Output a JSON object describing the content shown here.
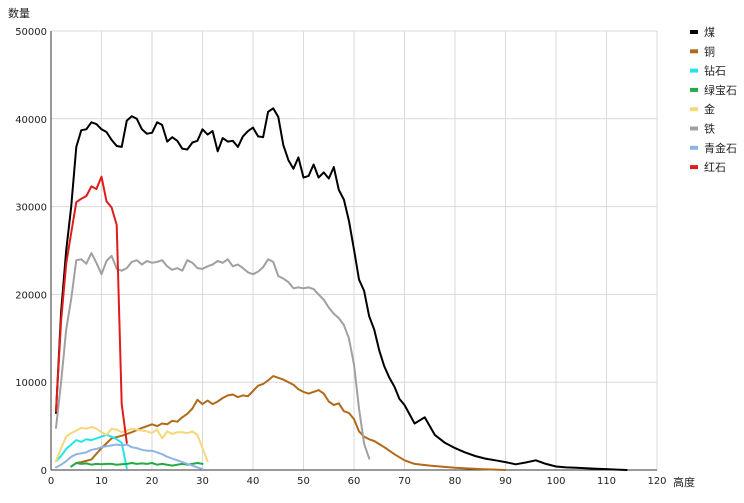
{
  "chart_data": {
    "type": "line",
    "title": "",
    "xlabel": "高度",
    "ylabel": "数量",
    "xlim": [
      0,
      120
    ],
    "ylim": [
      0,
      50000
    ],
    "x_ticks": [
      0,
      10,
      20,
      30,
      40,
      50,
      60,
      70,
      80,
      90,
      100,
      110,
      120
    ],
    "y_ticks": [
      0,
      10000,
      20000,
      30000,
      40000,
      50000
    ],
    "grid": true,
    "legend_position": "right",
    "series": [
      {
        "name": "煤",
        "color": "#000000",
        "x": [
          1,
          2,
          3,
          4,
          5,
          6,
          7,
          8,
          9,
          10,
          11,
          12,
          13,
          14,
          15,
          16,
          17,
          18,
          19,
          20,
          21,
          22,
          23,
          24,
          25,
          26,
          27,
          28,
          29,
          30,
          31,
          32,
          33,
          34,
          35,
          36,
          37,
          38,
          39,
          40,
          41,
          42,
          43,
          44,
          45,
          46,
          47,
          48,
          49,
          50,
          51,
          52,
          53,
          54,
          55,
          56,
          57,
          58,
          59,
          60,
          61,
          62,
          63,
          64,
          65,
          66,
          67,
          68,
          69,
          70,
          72,
          74,
          76,
          78,
          80,
          82,
          84,
          86,
          88,
          90,
          92,
          94,
          96,
          98,
          100,
          102,
          104,
          106,
          108,
          110,
          112,
          114
        ],
        "y": [
          6500,
          18000,
          25000,
          30000,
          36800,
          38700,
          38800,
          39600,
          39400,
          38800,
          38500,
          37600,
          36900,
          36800,
          39800,
          40300,
          40000,
          38800,
          38300,
          38400,
          39600,
          39300,
          37400,
          37900,
          37500,
          36600,
          36500,
          37300,
          37500,
          38800,
          38200,
          38600,
          36300,
          37800,
          37400,
          37500,
          36800,
          38000,
          38600,
          39000,
          38000,
          37900,
          40800,
          41200,
          40200,
          37000,
          35300,
          34300,
          35600,
          33300,
          33500,
          34800,
          33300,
          33900,
          33200,
          34500,
          31900,
          30800,
          28400,
          25100,
          21700,
          20400,
          17500,
          16000,
          13600,
          11800,
          10500,
          9500,
          8100,
          7400,
          5300,
          6000,
          4000,
          3100,
          2500,
          2000,
          1600,
          1300,
          1100,
          900,
          650,
          850,
          1100,
          700,
          400,
          300,
          250,
          200,
          150,
          100,
          50,
          0
        ]
      },
      {
        "name": "铜",
        "color": "#b06a1a",
        "x": [
          5,
          6,
          8,
          10,
          12,
          14,
          16,
          18,
          20,
          21,
          22,
          23,
          24,
          25,
          26,
          27,
          28,
          29,
          30,
          31,
          32,
          33,
          34,
          35,
          36,
          37,
          38,
          39,
          40,
          41,
          42,
          43,
          44,
          45,
          46,
          47,
          48,
          49,
          50,
          51,
          52,
          53,
          54,
          55,
          56,
          57,
          58,
          59,
          60,
          61,
          62,
          63,
          64,
          66,
          68,
          70,
          72,
          75,
          80,
          85,
          90
        ],
        "y": [
          800,
          900,
          1200,
          2500,
          3600,
          3900,
          4300,
          4800,
          5200,
          5000,
          5300,
          5200,
          5600,
          5500,
          6000,
          6400,
          7000,
          8000,
          7500,
          7900,
          7500,
          7800,
          8200,
          8500,
          8600,
          8300,
          8500,
          8400,
          9000,
          9600,
          9800,
          10200,
          10700,
          10500,
          10300,
          10000,
          9700,
          9200,
          8900,
          8700,
          8900,
          9100,
          8700,
          7800,
          7400,
          7600,
          6700,
          6500,
          5800,
          4400,
          3800,
          3500,
          3300,
          2600,
          1800,
          1100,
          700,
          500,
          250,
          100,
          0
        ]
      },
      {
        "name": "钻石",
        "color": "#22e6e6",
        "x": [
          1,
          2,
          3,
          4,
          5,
          6,
          7,
          8,
          9,
          10,
          11,
          12,
          13,
          14,
          15
        ],
        "y": [
          1000,
          1600,
          2400,
          2900,
          3400,
          3200,
          3500,
          3400,
          3600,
          3800,
          4000,
          3800,
          3500,
          3100,
          200
        ]
      },
      {
        "name": "绿宝石",
        "color": "#22aa44",
        "x": [
          4,
          5,
          6,
          7,
          8,
          9,
          10,
          11,
          12,
          13,
          14,
          15,
          16,
          17,
          18,
          19,
          20,
          21,
          22,
          23,
          24,
          25,
          26,
          27,
          28,
          29,
          30
        ],
        "y": [
          400,
          800,
          700,
          750,
          600,
          700,
          650,
          700,
          700,
          600,
          650,
          700,
          800,
          700,
          750,
          700,
          800,
          600,
          700,
          600,
          500,
          600,
          700,
          600,
          700,
          800,
          700
        ]
      },
      {
        "name": "金",
        "color": "#f6d77a",
        "x": [
          1,
          2,
          3,
          4,
          5,
          6,
          7,
          8,
          9,
          10,
          11,
          12,
          13,
          14,
          15,
          16,
          17,
          18,
          19,
          20,
          21,
          22,
          23,
          24,
          25,
          26,
          27,
          28,
          29,
          30,
          31
        ],
        "y": [
          1000,
          2500,
          3800,
          4200,
          4500,
          4800,
          4700,
          4900,
          4700,
          4300,
          4000,
          4700,
          4600,
          4300,
          4500,
          4700,
          4600,
          4500,
          4400,
          4200,
          4600,
          3600,
          4400,
          4100,
          4300,
          4300,
          4200,
          4400,
          4000,
          2500,
          1000
        ]
      },
      {
        "name": "铁",
        "color": "#a0a0a0",
        "x": [
          1,
          2,
          3,
          4,
          5,
          6,
          7,
          8,
          9,
          10,
          11,
          12,
          13,
          14,
          15,
          16,
          17,
          18,
          19,
          20,
          21,
          22,
          23,
          24,
          25,
          26,
          27,
          28,
          29,
          30,
          31,
          32,
          33,
          34,
          35,
          36,
          37,
          38,
          39,
          40,
          41,
          42,
          43,
          44,
          45,
          46,
          47,
          48,
          49,
          50,
          51,
          52,
          53,
          54,
          55,
          56,
          57,
          58,
          59,
          60,
          61,
          62,
          63
        ],
        "y": [
          4800,
          10000,
          16000,
          19500,
          23900,
          24000,
          23500,
          24700,
          23600,
          22300,
          23800,
          24400,
          22900,
          22700,
          23000,
          23700,
          23900,
          23400,
          23800,
          23600,
          23700,
          23900,
          23200,
          22800,
          23000,
          22700,
          23900,
          23600,
          23000,
          22900,
          23200,
          23400,
          23800,
          23600,
          24000,
          23200,
          23400,
          23000,
          22500,
          22300,
          22600,
          23100,
          24000,
          23700,
          22100,
          21800,
          21400,
          20700,
          20800,
          20700,
          20800,
          20600,
          20000,
          19400,
          18500,
          17800,
          17300,
          16500,
          15000,
          12000,
          7000,
          3000,
          1300
        ]
      },
      {
        "name": "青金石",
        "color": "#8fb4e3",
        "x": [
          1,
          2,
          3,
          4,
          5,
          6,
          7,
          8,
          9,
          10,
          11,
          12,
          13,
          14,
          15,
          16,
          17,
          18,
          19,
          20,
          21,
          22,
          23,
          24,
          25,
          26,
          27,
          28,
          29,
          30
        ],
        "y": [
          300,
          600,
          1000,
          1500,
          1800,
          1900,
          2000,
          2300,
          2400,
          2600,
          2700,
          2800,
          2900,
          2800,
          2900,
          2600,
          2500,
          2300,
          2200,
          2200,
          2000,
          1800,
          1500,
          1300,
          1100,
          900,
          700,
          500,
          300,
          100
        ]
      },
      {
        "name": "红石",
        "color": "#e01b1b",
        "x": [
          1,
          2,
          3,
          4,
          5,
          6,
          7,
          8,
          9,
          10,
          11,
          12,
          13,
          14,
          15
        ],
        "y": [
          6700,
          17000,
          23500,
          27000,
          30500,
          30900,
          31200,
          32300,
          32000,
          33400,
          30600,
          29900,
          27900,
          7500,
          3100
        ]
      }
    ]
  }
}
